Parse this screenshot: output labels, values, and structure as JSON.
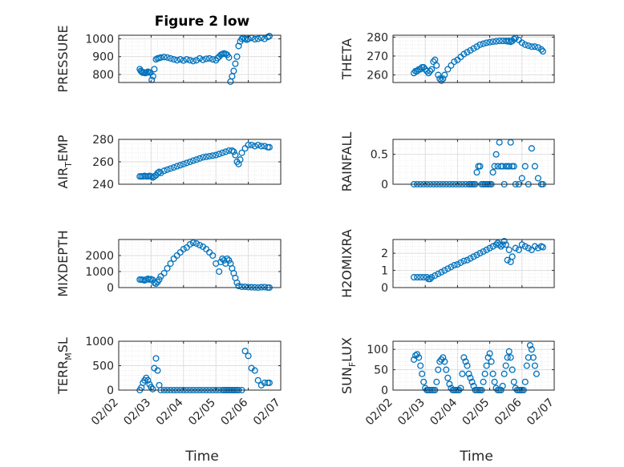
{
  "figure": {
    "title": "Figure 2 low",
    "marker_color": "#0072bd",
    "grid": "major+minor",
    "x_range": [
      "02/02",
      "02/07"
    ]
  },
  "chart_data": [
    {
      "type": "scatter",
      "ylabel": "PRESSURE",
      "yticks": [
        800,
        900,
        1000
      ],
      "ylim": [
        755,
        1020
      ],
      "x": [
        2.65,
        2.68,
        2.71,
        2.74,
        2.78,
        2.82,
        2.86,
        2.9,
        2.94,
        2.98,
        3.02,
        3.06,
        3.1,
        3.15,
        3.2,
        3.25,
        3.3,
        3.4,
        3.5,
        3.6,
        3.7,
        3.8,
        3.9,
        4.0,
        4.1,
        4.2,
        4.3,
        4.4,
        4.5,
        4.6,
        4.7,
        4.8,
        4.9,
        5.0,
        5.05,
        5.1,
        5.15,
        5.2,
        5.25,
        5.3,
        5.35,
        5.4,
        5.45,
        5.5,
        5.55,
        5.6,
        5.65,
        5.7,
        5.75,
        5.8,
        5.85,
        5.9,
        5.95,
        6.0,
        6.1,
        6.2,
        6.3,
        6.4,
        6.5,
        6.6,
        6.65
      ],
      "y": [
        830,
        820,
        815,
        810,
        812,
        808,
        810,
        815,
        812,
        810,
        770,
        790,
        830,
        885,
        890,
        892,
        895,
        898,
        895,
        890,
        885,
        880,
        885,
        878,
        885,
        880,
        875,
        880,
        890,
        882,
        888,
        890,
        885,
        880,
        892,
        900,
        910,
        915,
        918,
        915,
        910,
        895,
        760,
        790,
        820,
        860,
        900,
        960,
        985,
        1000,
        1005,
        1000,
        995,
        1000,
        1005,
        998,
        1000,
        1005,
        1000,
        1010,
        1015
      ]
    },
    {
      "type": "scatter",
      "ylabel": "THETA",
      "yticks": [
        260,
        270,
        280
      ],
      "ylim": [
        256,
        281
      ],
      "x": [
        2.65,
        2.7,
        2.75,
        2.8,
        2.85,
        2.9,
        2.95,
        3.0,
        3.05,
        3.1,
        3.15,
        3.2,
        3.25,
        3.3,
        3.35,
        3.4,
        3.45,
        3.5,
        3.55,
        3.6,
        3.7,
        3.8,
        3.9,
        4.0,
        4.1,
        4.2,
        4.3,
        4.4,
        4.5,
        4.6,
        4.7,
        4.8,
        4.9,
        5.0,
        5.1,
        5.2,
        5.3,
        5.4,
        5.5,
        5.55,
        5.6,
        5.65,
        5.7,
        5.75,
        5.8,
        5.9,
        6.0,
        6.1,
        6.2,
        6.3,
        6.4,
        6.5,
        6.6,
        6.65
      ],
      "y": [
        261,
        262,
        262,
        263,
        263,
        264,
        264,
        263,
        262,
        261,
        262,
        263,
        267,
        268,
        265,
        260,
        258,
        257,
        258,
        260,
        263,
        265,
        267,
        268,
        269.5,
        271,
        272,
        273,
        274,
        275,
        276,
        276.5,
        277,
        277.3,
        277.6,
        277.8,
        278,
        278,
        278,
        277.8,
        278,
        277.5,
        278,
        279,
        279.5,
        278.5,
        277,
        276,
        275.5,
        275,
        275,
        274.5,
        273.5,
        272.5
      ]
    },
    {
      "type": "scatter",
      "ylabel": "AIR_TEMP",
      "ylabel_sub": "T",
      "yticks": [
        240,
        260,
        280
      ],
      "ylim": [
        240,
        280
      ],
      "x": [
        2.65,
        2.7,
        2.75,
        2.8,
        2.85,
        2.9,
        2.95,
        3.0,
        3.05,
        3.1,
        3.15,
        3.2,
        3.25,
        3.3,
        3.4,
        3.5,
        3.6,
        3.7,
        3.8,
        3.9,
        4.0,
        4.1,
        4.2,
        4.3,
        4.4,
        4.5,
        4.6,
        4.7,
        4.8,
        4.9,
        5.0,
        5.1,
        5.2,
        5.3,
        5.4,
        5.5,
        5.55,
        5.6,
        5.65,
        5.7,
        5.75,
        5.8,
        5.9,
        6.0,
        6.1,
        6.2,
        6.3,
        6.4,
        6.5,
        6.6,
        6.65
      ],
      "y": [
        247,
        247,
        247,
        247.5,
        247,
        247,
        247.5,
        247,
        246,
        247,
        248,
        250,
        251,
        250,
        252,
        253,
        254,
        255,
        256,
        257,
        258,
        259,
        260,
        261,
        262,
        263,
        264,
        264.5,
        265,
        265.5,
        266,
        267,
        268,
        269,
        270,
        270,
        269,
        266,
        260,
        258,
        262,
        268,
        272,
        275,
        275,
        274,
        275,
        274,
        274,
        273,
        273
      ]
    },
    {
      "type": "scatter",
      "ylabel": "RAINFALL",
      "yticks": [
        0,
        0.5
      ],
      "ylim": [
        0,
        0.75
      ],
      "x": [
        2.65,
        2.75,
        2.85,
        2.95,
        3.05,
        3.15,
        3.25,
        3.35,
        3.45,
        3.55,
        3.65,
        3.75,
        3.85,
        3.95,
        4.05,
        4.15,
        4.25,
        4.35,
        4.4,
        4.45,
        4.5,
        4.55,
        4.6,
        4.65,
        4.7,
        4.75,
        4.8,
        4.85,
        4.9,
        4.95,
        5.0,
        5.05,
        5.1,
        5.15,
        5.2,
        5.25,
        5.3,
        5.35,
        5.4,
        5.45,
        5.5,
        5.55,
        5.6,
        5.65,
        5.7,
        5.75,
        5.8,
        5.9,
        6.0,
        6.1,
        6.2,
        6.3,
        6.4,
        6.5,
        6.6,
        6.65
      ],
      "y": [
        0,
        0,
        0,
        0,
        0,
        0,
        0,
        0,
        0,
        0,
        0,
        0,
        0,
        0,
        0,
        0,
        0,
        0,
        0,
        0,
        0,
        0,
        0.2,
        0.3,
        0.3,
        0,
        0,
        0,
        0,
        0,
        0,
        0,
        0.2,
        0.3,
        0.5,
        0.3,
        0.7,
        0.3,
        0.3,
        0,
        0.3,
        0.3,
        0.3,
        0.7,
        0.3,
        0.3,
        0,
        0,
        0.1,
        0.3,
        0,
        0.6,
        0.3,
        0.1,
        0,
        0
      ]
    },
    {
      "type": "scatter",
      "ylabel": "MIXDEPTH",
      "yticks": [
        0,
        1000,
        2000
      ],
      "ylim": [
        0,
        3000
      ],
      "x": [
        2.65,
        2.7,
        2.75,
        2.8,
        2.85,
        2.9,
        2.95,
        3.0,
        3.05,
        3.1,
        3.15,
        3.2,
        3.25,
        3.3,
        3.4,
        3.5,
        3.6,
        3.7,
        3.8,
        3.9,
        4.0,
        4.1,
        4.2,
        4.3,
        4.4,
        4.5,
        4.6,
        4.7,
        4.8,
        4.9,
        5.0,
        5.1,
        5.15,
        5.2,
        5.25,
        5.3,
        5.35,
        5.4,
        5.45,
        5.5,
        5.55,
        5.6,
        5.65,
        5.7,
        5.8,
        5.9,
        6.0,
        6.1,
        6.2,
        6.3,
        6.4,
        6.5,
        6.6,
        6.65
      ],
      "y": [
        500,
        500,
        480,
        450,
        500,
        550,
        500,
        520,
        480,
        300,
        250,
        350,
        500,
        700,
        900,
        1200,
        1500,
        1800,
        2000,
        2200,
        2400,
        2500,
        2700,
        2800,
        2750,
        2650,
        2550,
        2400,
        2200,
        2000,
        1500,
        1000,
        1600,
        1800,
        1700,
        1500,
        1800,
        1700,
        1500,
        1200,
        900,
        600,
        300,
        100,
        50,
        50,
        30,
        20,
        10,
        0,
        20,
        30,
        0,
        0
      ]
    },
    {
      "type": "scatter",
      "ylabel": "H2OMIXRA",
      "yticks": [
        0,
        1,
        2
      ],
      "ylim": [
        0,
        2.8
      ],
      "x": [
        2.65,
        2.75,
        2.85,
        2.95,
        3.05,
        3.1,
        3.15,
        3.2,
        3.3,
        3.4,
        3.5,
        3.6,
        3.7,
        3.8,
        3.9,
        4.0,
        4.1,
        4.2,
        4.3,
        4.4,
        4.5,
        4.6,
        4.7,
        4.8,
        4.9,
        5.0,
        5.1,
        5.2,
        5.25,
        5.3,
        5.35,
        5.4,
        5.45,
        5.5,
        5.55,
        5.6,
        5.65,
        5.7,
        5.8,
        5.9,
        6.0,
        6.1,
        6.2,
        6.3,
        6.4,
        6.5,
        6.6,
        6.65
      ],
      "y": [
        0.6,
        0.6,
        0.6,
        0.6,
        0.6,
        0.5,
        0.5,
        0.6,
        0.7,
        0.8,
        0.9,
        1.0,
        1.1,
        1.2,
        1.3,
        1.35,
        1.45,
        1.55,
        1.6,
        1.7,
        1.8,
        1.9,
        2.0,
        2.1,
        2.2,
        2.3,
        2.4,
        2.5,
        2.6,
        2.5,
        2.4,
        2.5,
        2.7,
        2.5,
        1.6,
        2.2,
        1.5,
        1.8,
        2.3,
        2.2,
        2.5,
        2.4,
        2.3,
        2.2,
        2.4,
        2.3,
        2.4,
        2.35
      ]
    },
    {
      "type": "scatter",
      "ylabel": "TERR_MSL",
      "ylabel_sub": "M",
      "yticks": [
        0,
        500,
        1000
      ],
      "ylim": [
        0,
        1000
      ],
      "x": [
        2.65,
        2.7,
        2.75,
        2.8,
        2.85,
        2.9,
        2.95,
        3.0,
        3.05,
        3.1,
        3.15,
        3.2,
        3.25,
        3.3,
        3.4,
        3.5,
        3.6,
        3.7,
        3.8,
        3.9,
        4.0,
        4.1,
        4.2,
        4.3,
        4.4,
        4.5,
        4.6,
        4.7,
        4.8,
        4.9,
        5.0,
        5.1,
        5.2,
        5.25,
        5.3,
        5.35,
        5.4,
        5.45,
        5.5,
        5.55,
        5.6,
        5.65,
        5.7,
        5.8,
        5.9,
        6.0,
        6.1,
        6.2,
        6.3,
        6.4,
        6.5,
        6.6,
        6.65
      ],
      "y": [
        0,
        50,
        150,
        200,
        250,
        200,
        120,
        60,
        20,
        450,
        650,
        400,
        100,
        0,
        0,
        0,
        0,
        0,
        0,
        0,
        0,
        0,
        0,
        0,
        0,
        0,
        0,
        0,
        0,
        0,
        0,
        0,
        0,
        0,
        0,
        0,
        0,
        0,
        0,
        0,
        0,
        0,
        0,
        0,
        800,
        700,
        450,
        400,
        200,
        100,
        150,
        150,
        150
      ]
    },
    {
      "type": "scatter",
      "ylabel": "SUN_FLUX",
      "ylabel_sub": "F",
      "yticks": [
        0,
        50,
        100
      ],
      "ylim": [
        0,
        120
      ],
      "x": [
        2.65,
        2.7,
        2.75,
        2.8,
        2.85,
        2.9,
        2.95,
        3.0,
        3.05,
        3.1,
        3.15,
        3.2,
        3.25,
        3.3,
        3.35,
        3.4,
        3.45,
        3.5,
        3.55,
        3.6,
        3.65,
        3.7,
        3.75,
        3.8,
        3.85,
        3.9,
        3.95,
        4.0,
        4.05,
        4.1,
        4.15,
        4.2,
        4.25,
        4.3,
        4.35,
        4.4,
        4.45,
        4.5,
        4.55,
        4.6,
        4.65,
        4.7,
        4.75,
        4.8,
        4.85,
        4.9,
        4.95,
        5.0,
        5.05,
        5.1,
        5.15,
        5.2,
        5.25,
        5.3,
        5.35,
        5.4,
        5.45,
        5.5,
        5.55,
        5.6,
        5.65,
        5.7,
        5.75,
        5.8,
        5.85,
        5.9,
        5.95,
        6.0,
        6.05,
        6.1,
        6.15,
        6.2,
        6.25,
        6.3,
        6.35,
        6.4,
        6.45
      ],
      "y": [
        75,
        85,
        88,
        80,
        60,
        40,
        20,
        5,
        0,
        0,
        0,
        0,
        0,
        0,
        20,
        50,
        70,
        75,
        80,
        70,
        50,
        30,
        15,
        5,
        0,
        0,
        0,
        0,
        0,
        5,
        40,
        80,
        70,
        60,
        40,
        30,
        20,
        10,
        0,
        0,
        0,
        0,
        0,
        20,
        40,
        60,
        80,
        90,
        70,
        40,
        20,
        5,
        0,
        0,
        0,
        10,
        40,
        60,
        80,
        95,
        80,
        50,
        20,
        5,
        0,
        0,
        0,
        0,
        0,
        20,
        60,
        80,
        110,
        100,
        80,
        60,
        40
      ]
    }
  ],
  "xaxis": {
    "ticks": [
      2,
      3,
      4,
      5,
      6,
      7
    ],
    "tick_labels": [
      "02/02",
      "02/03",
      "02/04",
      "02/05",
      "02/06",
      "02/07"
    ],
    "label": "Time"
  }
}
